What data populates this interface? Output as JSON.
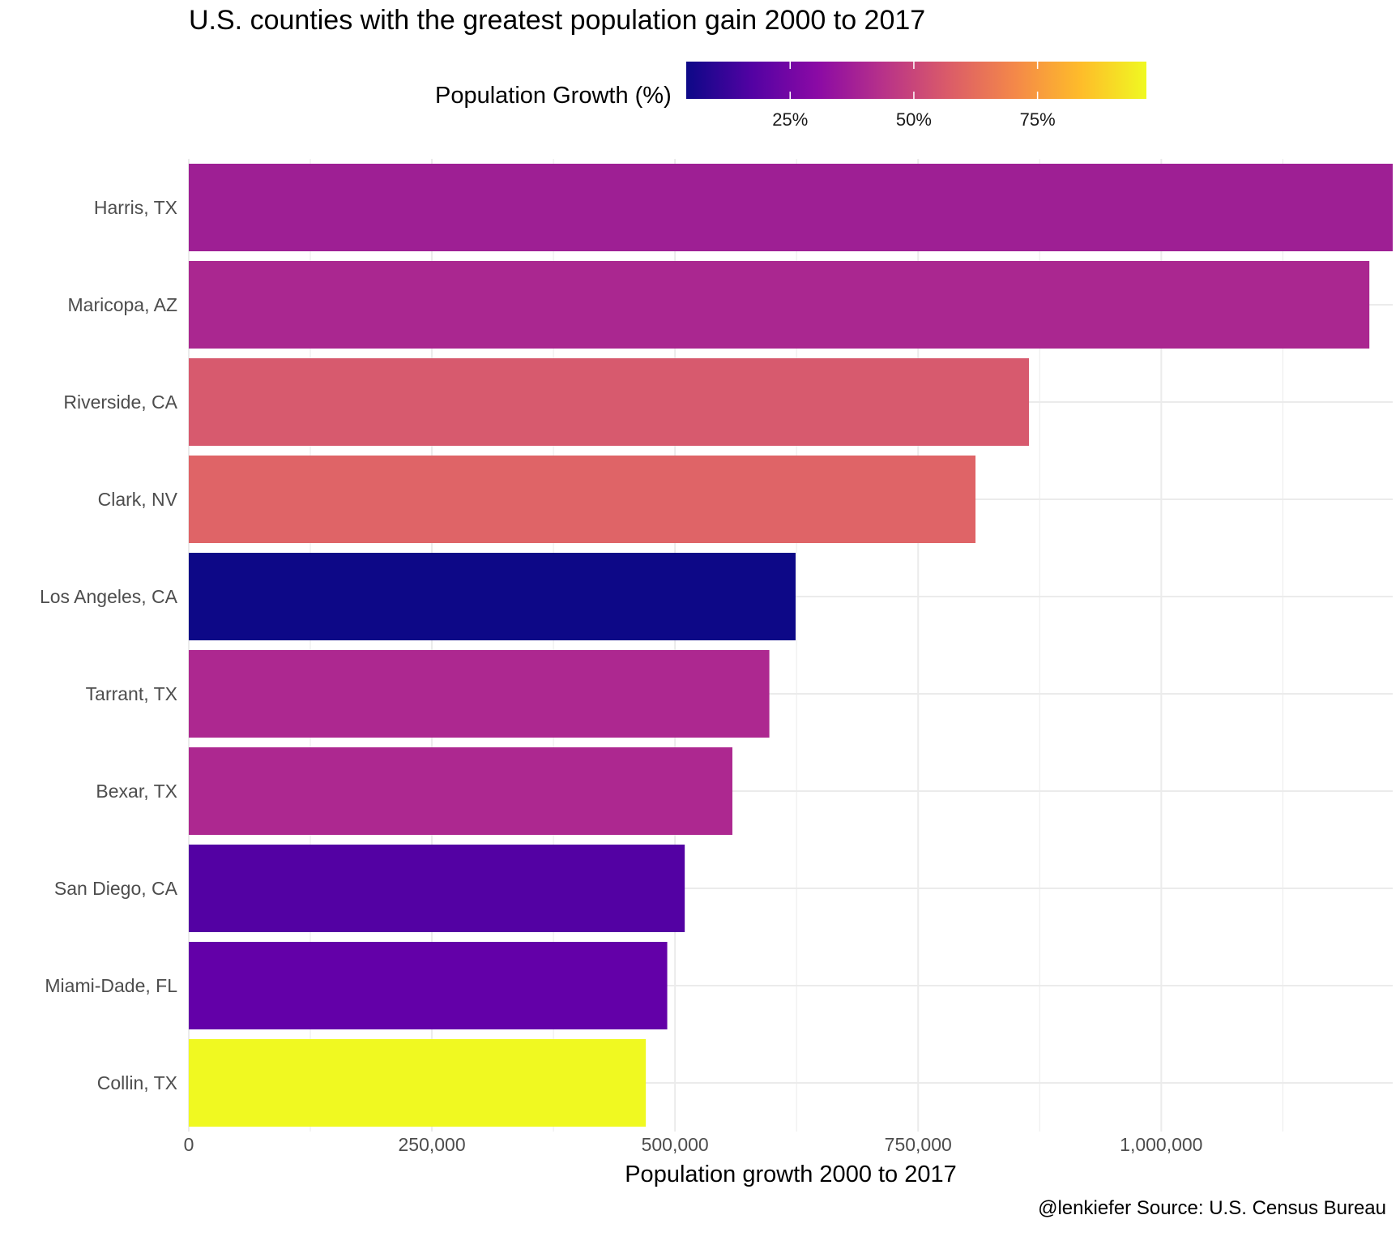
{
  "chart_data": {
    "type": "bar",
    "orientation": "horizontal",
    "title": "U.S. counties with the greatest population gain 2000 to 2017",
    "xlabel": "Population growth 2000 to 2017",
    "ylabel": "",
    "caption": "@lenkiefer Source: U.S. Census Bureau",
    "categories": [
      "Harris, TX",
      "Maricopa, AZ",
      "Riverside, CA",
      "Clark, NV",
      "Los Angeles, CA",
      "Tarrant, TX",
      "Bexar, TX",
      "San Diego, CA",
      "Miami-Dade, FL",
      "Collin, TX"
    ],
    "values": [
      1238000,
      1214000,
      864000,
      809000,
      624000,
      597000,
      559000,
      510000,
      492000,
      470000
    ],
    "growth_pct": [
      36,
      40,
      56,
      59,
      7,
      41,
      41,
      17,
      20,
      97
    ],
    "xlim": [
      0,
      1238000
    ],
    "xticks": [
      0,
      250000,
      500000,
      750000,
      1000000
    ],
    "xtick_labels": [
      "0",
      "250,000",
      "500,000",
      "750,000",
      "1,000,000"
    ],
    "grid": true,
    "legend": {
      "title": "Population Growth (%)",
      "position": "top",
      "type": "colorbar",
      "palette": "plasma",
      "range": [
        4,
        97
      ],
      "ticks": [
        25,
        50,
        75
      ],
      "tick_labels": [
        "25%",
        "50%",
        "75%"
      ]
    }
  },
  "colors": {
    "bars": [
      "#9e1f94",
      "#aa2790",
      "#d75a6e",
      "#df6467",
      "#0d0887",
      "#ad2890",
      "#ad2890",
      "#5301a3",
      "#6300a8",
      "#f0f921"
    ],
    "plasma": [
      "#0d0887",
      "#5302a3",
      "#8b0aa5",
      "#b83289",
      "#db5c68",
      "#f48849",
      "#febc2a",
      "#f0f921"
    ],
    "grid": "#ebebeb",
    "tick_text": "#4d4d4d"
  }
}
